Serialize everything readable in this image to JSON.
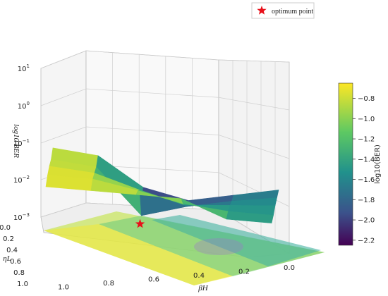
{
  "chart_data": {
    "type": "surface3d",
    "legend": {
      "label": "optimum point",
      "placement": "top-right",
      "marker": "red-star"
    },
    "zlabel": "log10 BER",
    "xlabel": "βH",
    "ylabel": "ηL",
    "colorbar_label": "log10(BER)",
    "colormap": "viridis",
    "colorbar_range": [
      -2.25,
      -0.65
    ],
    "colorbar_ticks": [
      "-0.8",
      "-1.0",
      "-1.2",
      "-1.4",
      "-1.6",
      "-1.8",
      "-2.0",
      "-2.2"
    ],
    "z_scale": "log",
    "z_ticks": [
      "10^-3",
      "10^-2",
      "10^-1",
      "10^0",
      "10^1"
    ],
    "x_ticks": [
      "0.0",
      "0.2",
      "0.4",
      "0.6",
      "0.8",
      "1.0"
    ],
    "y_ticks": [
      "0.0",
      "0.2",
      "0.4",
      "0.6",
      "0.8",
      "1.0"
    ],
    "grid": true,
    "optimum_point": {
      "beta_H": 0.6,
      "eta_L": 0.25,
      "log10_ber": -2.2
    },
    "beta_grid": [
      1.0,
      0.8,
      0.6,
      0.4,
      0.2,
      0.0
    ],
    "eta_grid": [
      1.0,
      0.75,
      0.5,
      0.25,
      0.0
    ],
    "log10_ber_surface": [
      [
        -0.75,
        -0.8,
        -0.85,
        -0.9,
        -1.4,
        -1.45
      ],
      [
        -0.7,
        -0.75,
        -1.0,
        -1.3,
        -1.45,
        -1.5
      ],
      [
        -0.72,
        -0.85,
        -1.25,
        -1.6,
        -1.55,
        -1.5
      ],
      [
        -0.8,
        -0.95,
        -2.2,
        -1.9,
        -1.7,
        -1.55
      ],
      [
        -0.75,
        -0.9,
        -1.7,
        -2.0,
        -1.8,
        -1.6
      ]
    ]
  }
}
